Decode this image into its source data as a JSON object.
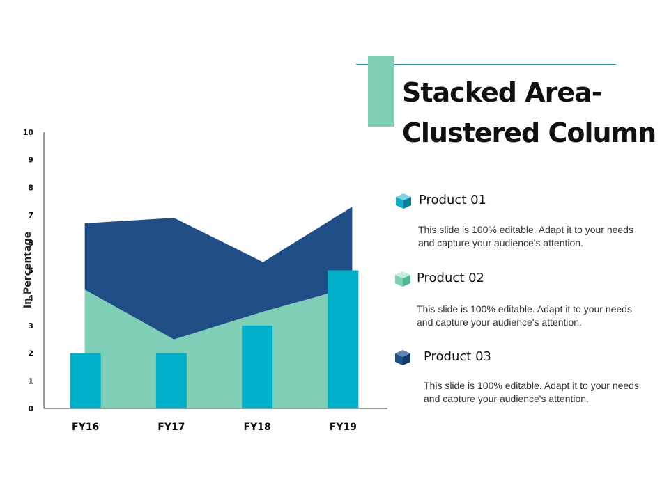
{
  "title_lines": [
    "Stacked Area-",
    "Clustered Column"
  ],
  "products": [
    {
      "title": "Product 01",
      "description": "This slide is 100% editable. Adapt it to your needs and capture your audience's attention.",
      "icon": "cube-icon",
      "color": "#1aa8c7"
    },
    {
      "title": "Product 02",
      "description": "This slide is 100% editable. Adapt it to your needs and capture your audience's attention.",
      "icon": "cube-icon",
      "color": "#7ecfb6"
    },
    {
      "title": "Product 03",
      "description": "This slide is 100% editable. Adapt it to your needs and capture your audience's attention.",
      "icon": "cube-icon",
      "color": "#1f4e87"
    }
  ],
  "colors": {
    "area_top": "#1f4e87",
    "area_bottom": "#7ecfb6",
    "columns": "#00b0c8",
    "accent": "#7ecfb6"
  },
  "chart_data": {
    "type": "area",
    "categories": [
      "FY16",
      "FY17",
      "FY18",
      "FY19"
    ],
    "ylabel": "In Percentage",
    "ylim": [
      0,
      10
    ],
    "yticks": [
      0,
      1,
      2,
      3,
      4,
      5,
      6,
      7,
      8,
      9,
      10
    ],
    "series": [
      {
        "type": "stacked-area",
        "values": [
          4.3,
          2.5,
          3.5,
          4.4
        ]
      },
      {
        "type": "stacked-area",
        "values": [
          2.4,
          4.4,
          1.8,
          2.9
        ]
      },
      {
        "type": "column",
        "values": [
          2,
          2,
          3,
          5
        ]
      }
    ]
  }
}
